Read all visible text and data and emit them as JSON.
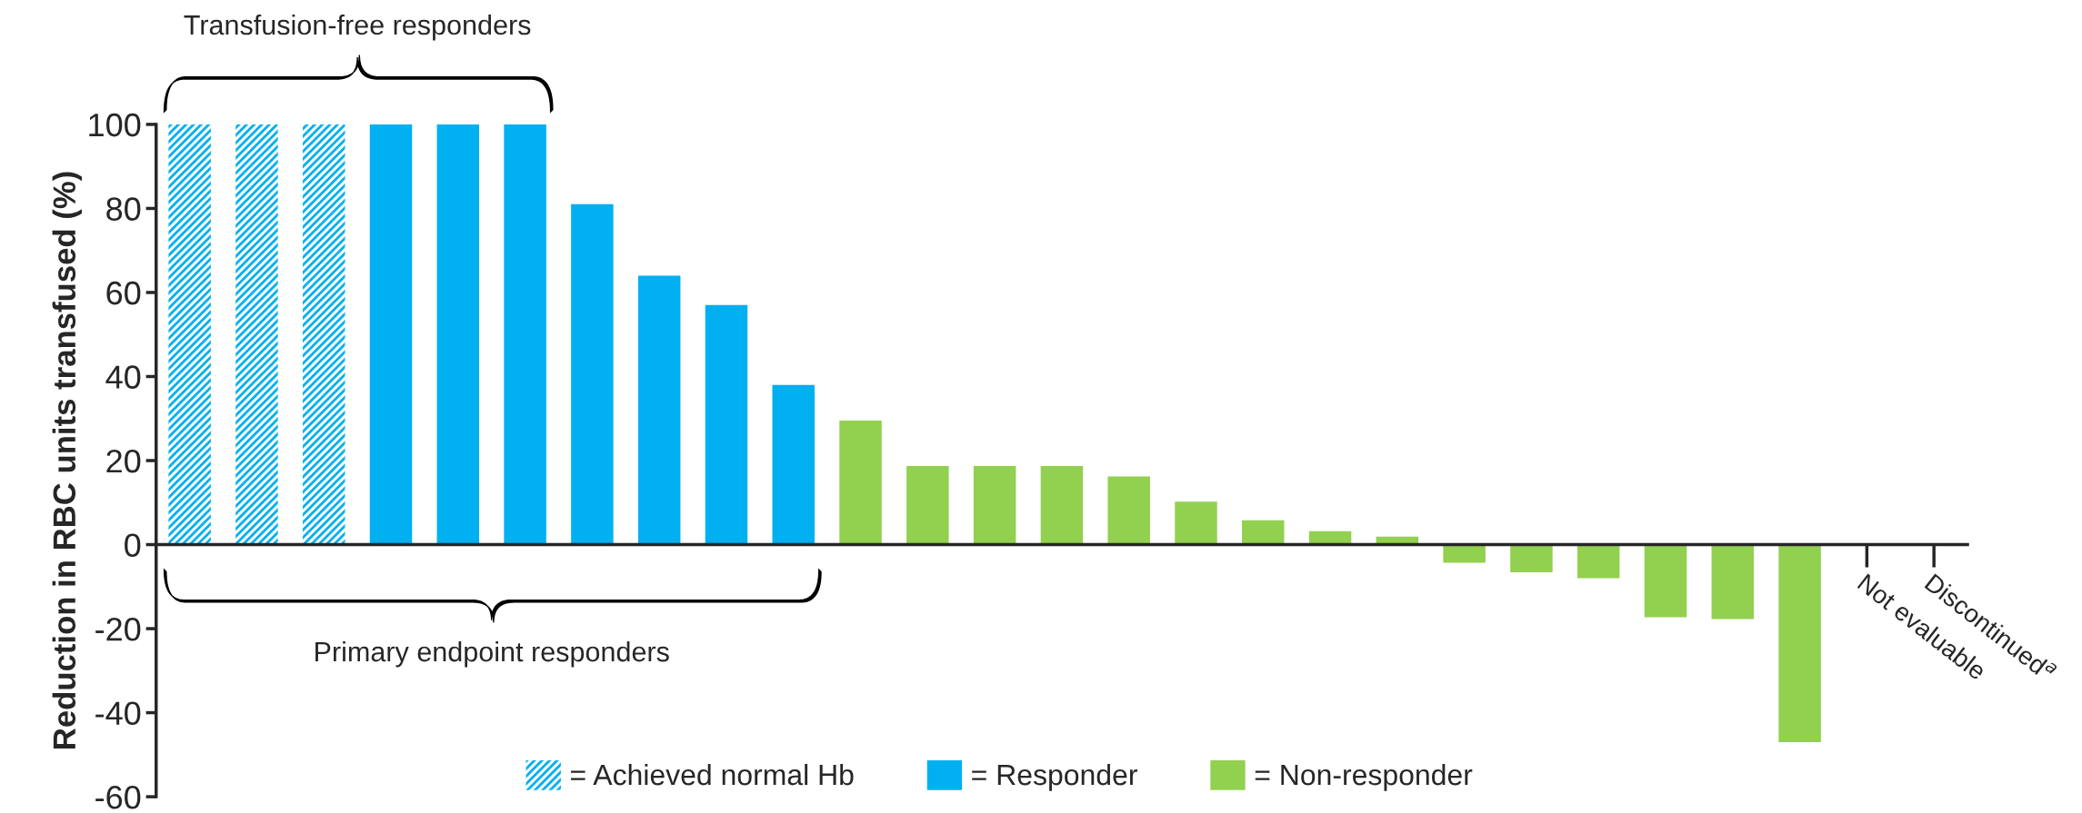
{
  "chart_data": {
    "type": "bar",
    "ylabel": "Reduction in RBC units transfused (%)",
    "categories": [
      null,
      null,
      null,
      null,
      null,
      null,
      null,
      null,
      null,
      null,
      null,
      null,
      null,
      null,
      null,
      null,
      null,
      null,
      null,
      null,
      null,
      null,
      null,
      null,
      null,
      "Not evaluable",
      "Discontinued$^{a}$"
    ],
    "series": [
      {
        "name": "= Achieved normal Hb",
        "color": "#00b0f0",
        "values": [
          100,
          100,
          100,
          null,
          null,
          null,
          null,
          null,
          null,
          null,
          null,
          null,
          null,
          null,
          null,
          null,
          null,
          null,
          null,
          null,
          null,
          null,
          null,
          null,
          null,
          null,
          null
        ]
      },
      {
        "name": "= Responder",
        "color": "#00b0f0",
        "values": [
          null,
          null,
          null,
          100,
          100,
          100,
          81,
          64,
          57,
          38,
          null,
          null,
          null,
          null,
          null,
          null,
          null,
          null,
          null,
          null,
          null,
          null,
          null,
          null,
          null,
          null,
          null
        ]
      },
      {
        "name": "= Non-responder",
        "color": "#92d050",
        "values": [
          null,
          null,
          null,
          null,
          null,
          null,
          null,
          null,
          null,
          null,
          29.5,
          18.7,
          18.7,
          18.7,
          16.2,
          10.2,
          5.8,
          3.2,
          1.9,
          -4.3,
          -6.6,
          -8,
          -17.3,
          -17.7,
          -47,
          null,
          null
        ]
      }
    ],
    "annotations": [
      "Transfusion-free responders",
      "Primary endpoint responders"
    ],
    "ylim": [
      -60,
      100
    ],
    "yticks": [
      -60,
      -40,
      -20,
      0,
      20,
      40,
      60,
      80,
      100
    ],
    "grid": false,
    "legend": "bottom"
  }
}
